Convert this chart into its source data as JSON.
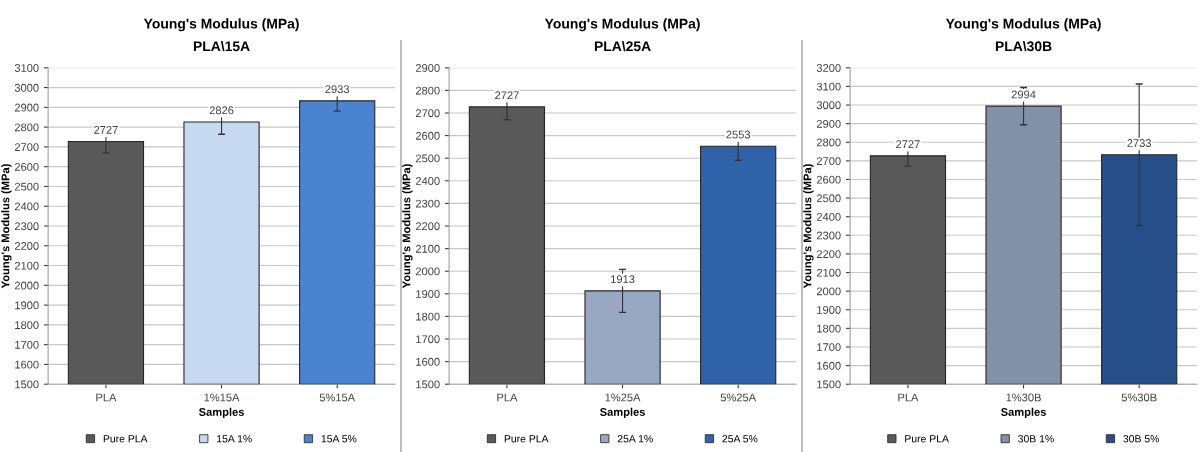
{
  "chart_data": [
    {
      "type": "bar",
      "title": "Young's Modulus (MPa)",
      "subtitle": "PLA\\15A",
      "xlabel": "Samples",
      "ylabel": "Young's Modulus (MPa)",
      "categories": [
        "PLA",
        "1%15A",
        "5%15A"
      ],
      "series": [
        {
          "name": "Pure PLA",
          "color": "#595959",
          "values": [
            2727,
            null,
            null
          ],
          "errors": [
            57,
            null,
            null
          ]
        },
        {
          "name": "15A 1%",
          "color": "#c6d9f1",
          "values": [
            null,
            2826,
            null
          ],
          "errors": [
            null,
            62,
            null
          ]
        },
        {
          "name": "15A 5%",
          "color": "#4a84d0",
          "values": [
            null,
            null,
            2933
          ],
          "errors": [
            null,
            null,
            52
          ]
        }
      ],
      "ylim": [
        1500,
        3100
      ],
      "yticks": [
        1500,
        1600,
        1700,
        1800,
        1900,
        2000,
        2100,
        2200,
        2300,
        2400,
        2500,
        2600,
        2700,
        2800,
        2900,
        3000,
        3100
      ],
      "data_labels": true,
      "grid": "y",
      "legend": "bottom"
    },
    {
      "type": "bar",
      "title": "Young's Modulus (MPa)",
      "subtitle": "PLA\\25A",
      "xlabel": "Samples",
      "ylabel": "Young's Modulus (MPa)",
      "categories": [
        "PLA",
        "1%25A",
        "5%25A"
      ],
      "series": [
        {
          "name": "Pure PLA",
          "color": "#595959",
          "values": [
            2727,
            null,
            null
          ],
          "errors": [
            57,
            null,
            null
          ]
        },
        {
          "name": "25A 1%",
          "color": "#98a8c2",
          "values": [
            null,
            1913,
            null
          ],
          "errors": [
            null,
            95,
            null
          ]
        },
        {
          "name": "25A 5%",
          "color": "#2f62a8",
          "values": [
            null,
            null,
            2553
          ],
          "errors": [
            null,
            null,
            62
          ]
        }
      ],
      "ylim": [
        1500,
        2900
      ],
      "yticks": [
        1500,
        1600,
        1700,
        1800,
        1900,
        2000,
        2100,
        2200,
        2300,
        2400,
        2500,
        2600,
        2700,
        2800,
        2900
      ],
      "data_labels": true,
      "grid": "y",
      "legend": "bottom"
    },
    {
      "type": "bar",
      "title": "Young's Modulus (MPa)",
      "subtitle": "PLA\\30B",
      "xlabel": "Samples",
      "ylabel": "Young's Modulus (MPa)",
      "categories": [
        "PLA",
        "1%30B",
        "5%30B"
      ],
      "series": [
        {
          "name": "Pure PLA",
          "color": "#595959",
          "values": [
            2727,
            null,
            null
          ],
          "errors": [
            55,
            null,
            null
          ]
        },
        {
          "name": "30B 1%",
          "color": "#8290a8",
          "values": [
            null,
            2994,
            null
          ],
          "errors": [
            null,
            100,
            null
          ]
        },
        {
          "name": "30B 5%",
          "color": "#264f8a",
          "values": [
            null,
            null,
            2733
          ],
          "errors": [
            null,
            null,
            380
          ]
        }
      ],
      "ylim": [
        1500,
        3200
      ],
      "yticks": [
        1500,
        1600,
        1700,
        1800,
        1900,
        2000,
        2100,
        2200,
        2300,
        2400,
        2500,
        2600,
        2700,
        2800,
        2900,
        3000,
        3100,
        3200
      ],
      "data_labels": true,
      "grid": "y",
      "legend": "bottom"
    }
  ]
}
